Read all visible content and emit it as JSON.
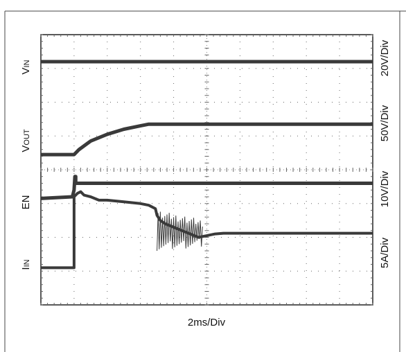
{
  "chart_data": {
    "type": "line",
    "grid": true,
    "divisions": {
      "x": 10,
      "y": 8
    },
    "xlim": [
      0,
      20
    ],
    "xlabel": "2ms/Div",
    "ylim": [
      0,
      8
    ],
    "series": [
      {
        "name": "VIN",
        "label_main": "V",
        "label_sub": "IN",
        "scale": "20V/Div",
        "color": "#3a3a3a",
        "stroke": 5,
        "points": [
          [
            0,
            7.2
          ],
          [
            20,
            7.2
          ]
        ]
      },
      {
        "name": "VOUT",
        "label_main": "V",
        "label_sub": "OUT",
        "scale": "50V/Div",
        "color": "#3a3a3a",
        "stroke": 5,
        "points": [
          [
            0,
            4.45
          ],
          [
            2.0,
            4.45
          ],
          [
            2.3,
            4.6
          ],
          [
            3.0,
            4.85
          ],
          [
            4.0,
            5.05
          ],
          [
            5.0,
            5.2
          ],
          [
            6.0,
            5.3
          ],
          [
            6.5,
            5.35
          ],
          [
            20,
            5.35
          ]
        ]
      },
      {
        "name": "EN",
        "label_main": "EN",
        "label_sub": "",
        "scale": "10V/Div",
        "color": "#3a3a3a",
        "stroke": 5,
        "points": [
          [
            0,
            3.15
          ],
          [
            1.9,
            3.2
          ],
          [
            2.0,
            3.4
          ],
          [
            2.05,
            3.8
          ],
          [
            2.1,
            3.8
          ],
          [
            2.1,
            3.6
          ],
          [
            20,
            3.6
          ]
        ]
      },
      {
        "name": "IN",
        "label_main": "I",
        "label_sub": "IN",
        "scale": "5A/Div",
        "color": "#3a3a3a",
        "stroke": 4,
        "points": [
          [
            0,
            1.1
          ],
          [
            2.0,
            1.1
          ],
          [
            2.0,
            3.2
          ],
          [
            2.2,
            3.3
          ],
          [
            2.4,
            3.35
          ],
          [
            2.6,
            3.25
          ],
          [
            3.0,
            3.2
          ],
          [
            3.5,
            3.1
          ],
          [
            4.0,
            3.1
          ],
          [
            5.0,
            3.05
          ],
          [
            6.0,
            3.0
          ],
          [
            6.5,
            2.95
          ],
          [
            6.9,
            2.85
          ],
          [
            7.0,
            2.65
          ],
          [
            7.2,
            2.5
          ],
          [
            7.5,
            2.4
          ],
          [
            8.0,
            2.3
          ],
          [
            8.5,
            2.2
          ],
          [
            9.0,
            2.1
          ],
          [
            9.5,
            2.0
          ],
          [
            10.0,
            2.05
          ],
          [
            10.5,
            2.1
          ],
          [
            11.0,
            2.12
          ],
          [
            12.0,
            2.12
          ],
          [
            20,
            2.12
          ]
        ]
      }
    ],
    "noise_band": {
      "x_start": 7.0,
      "x_end": 9.8,
      "y_low": 1.6,
      "y_high": 2.8
    }
  }
}
